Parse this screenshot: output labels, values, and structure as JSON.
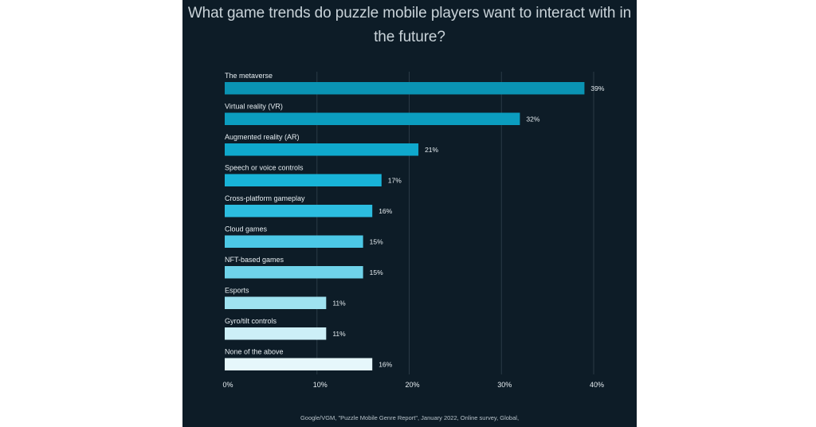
{
  "chart_data": {
    "type": "bar",
    "orientation": "horizontal",
    "title": "What game trends do puzzle mobile players want to interact with in the future?",
    "title_lines": [
      "What game trends do puzzle mobile players want to interact with in",
      "the future?"
    ],
    "categories": [
      "The metaverse",
      "Virtual reality (VR)",
      "Augmented reality (AR)",
      "Speech or voice controls",
      "Cross-platform gameplay",
      "Cloud games",
      "NFT-based games",
      "Esports",
      "Gyro/tilt controls",
      "None of the above"
    ],
    "values": [
      39,
      32,
      21,
      17,
      16,
      15,
      15,
      11,
      11,
      16
    ],
    "value_labels": [
      "39%",
      "32%",
      "21%",
      "17%",
      "16%",
      "15%",
      "15%",
      "11%",
      "11%",
      "16%"
    ],
    "bar_colors": [
      "#0a93b3",
      "#0b9dbf",
      "#0fa8cc",
      "#18b3d8",
      "#2cbde0",
      "#4cc8e6",
      "#6fd3ea",
      "#9fe2f0",
      "#cdeff7",
      "#e6f7fb"
    ],
    "xlabel": "",
    "ylabel": "",
    "xlim": [
      0,
      40
    ],
    "x_ticks": [
      0,
      10,
      20,
      30,
      40
    ],
    "x_tick_labels": [
      "0%",
      "10%",
      "20%",
      "30%",
      "40%"
    ],
    "grid": true,
    "legend": "none"
  },
  "footer": {
    "source": "Google/VGM, \"Puzzle Mobile Genre Report\", January 2022, Online survey, Global,"
  },
  "colors": {
    "background": "#0d1c27",
    "page": "#ffffff",
    "gridline": "#2a3a46",
    "text": "#e6edf1"
  }
}
